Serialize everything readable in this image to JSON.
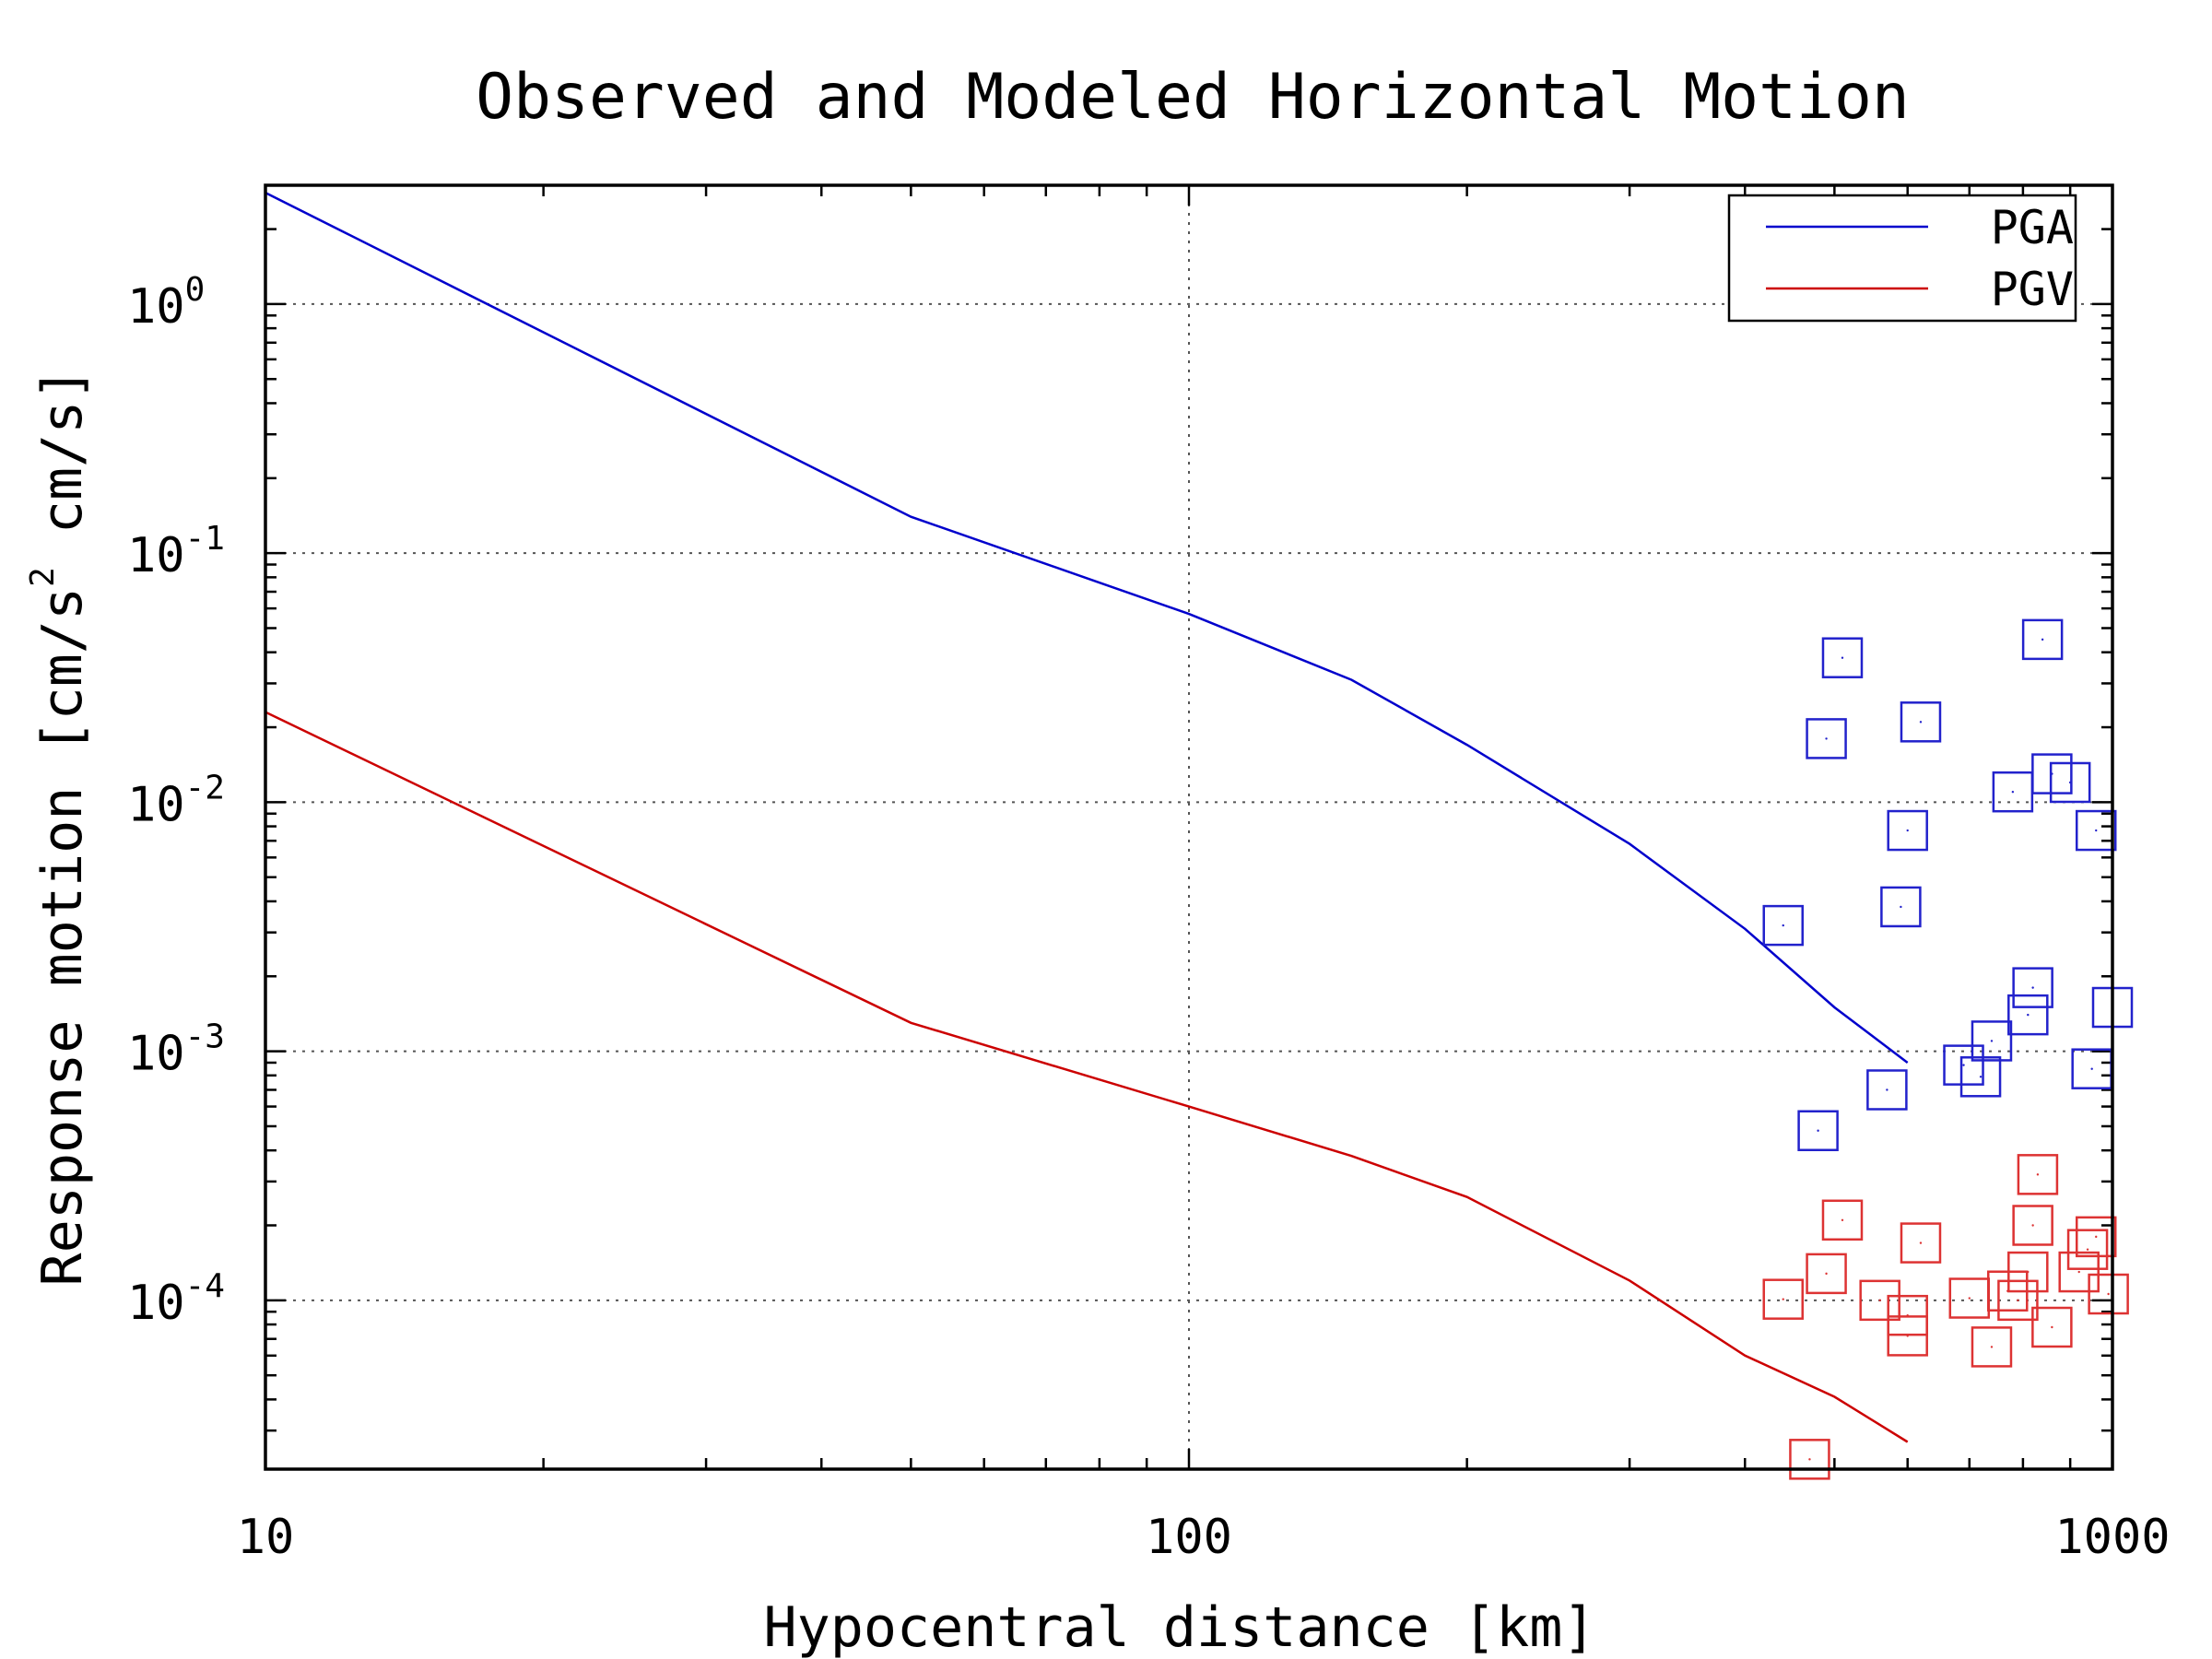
{
  "chart_data": {
    "type": "scatter",
    "title": "Observed and Modeled Horizontal Motion",
    "xlabel": "Hypocentral distance [km]",
    "ylabel": {
      "prefix": "Response motion [cm/s",
      "sup": "2",
      "suffix": " cm/s]"
    },
    "x_scale": "log",
    "y_scale": "log",
    "xlim": [
      10,
      1000
    ],
    "ylim": [
      2.1e-05,
      3
    ],
    "grid": true,
    "x_ticks": [
      {
        "value": 10,
        "label": "10"
      },
      {
        "value": 100,
        "label": "100"
      },
      {
        "value": 1000,
        "label": "1000"
      }
    ],
    "y_ticks": [
      {
        "value": 1,
        "base": "10",
        "exp": "0"
      },
      {
        "value": 0.1,
        "base": "10",
        "exp": "-1"
      },
      {
        "value": 0.01,
        "base": "10",
        "exp": "-2"
      },
      {
        "value": 0.001,
        "base": "10",
        "exp": "-3"
      },
      {
        "value": 0.0001,
        "base": "10",
        "exp": "-4"
      }
    ],
    "legend": {
      "position": "top-right",
      "entries": [
        "PGA",
        "PGV"
      ]
    },
    "series": [
      {
        "name": "PGA",
        "kind": "line",
        "color": "#0000cc",
        "x": [
          10,
          50,
          100,
          150,
          200,
          300,
          400,
          500,
          600
        ],
        "y": [
          2.8,
          0.14,
          0.057,
          0.031,
          0.017,
          0.0068,
          0.0031,
          0.0015,
          0.0009
        ]
      },
      {
        "name": "PGV",
        "kind": "line",
        "color": "#cc0000",
        "x": [
          10,
          50,
          100,
          150,
          200,
          300,
          400,
          500,
          600
        ],
        "y": [
          0.023,
          0.0013,
          0.0006,
          0.00038,
          0.00026,
          0.00012,
          6e-05,
          4.1e-05,
          2.7e-05
        ]
      },
      {
        "name": "PGA",
        "kind": "markers",
        "marker": "square",
        "color": "#2222cc",
        "x": [
          440,
          480,
          490,
          510,
          570,
          590,
          600,
          620,
          690,
          720,
          740,
          780,
          810,
          820,
          840,
          860,
          900,
          950,
          960,
          1000
        ],
        "y": [
          0.0032,
          0.00048,
          0.018,
          0.038,
          0.0007,
          0.0038,
          0.0077,
          0.021,
          0.00088,
          0.00079,
          0.0011,
          0.011,
          0.0014,
          0.0018,
          0.045,
          0.013,
          0.012,
          0.00085,
          0.0077,
          0.0015
        ]
      },
      {
        "name": "PGV",
        "kind": "markers",
        "marker": "square",
        "color": "#dd3333",
        "x": [
          440,
          470,
          490,
          510,
          560,
          600,
          600,
          620,
          700,
          740,
          770,
          790,
          810,
          820,
          830,
          860,
          920,
          940,
          960,
          990
        ],
        "y": [
          0.000101,
          2.3e-05,
          0.000128,
          0.00021,
          0.0001,
          7.2e-05,
          8.7e-05,
          0.00017,
          0.000102,
          6.5e-05,
          0.000109,
          0.0001,
          0.00013,
          0.0002,
          0.00032,
          7.8e-05,
          0.00013,
          0.00016,
          0.00018,
          0.000106
        ]
      }
    ]
  }
}
